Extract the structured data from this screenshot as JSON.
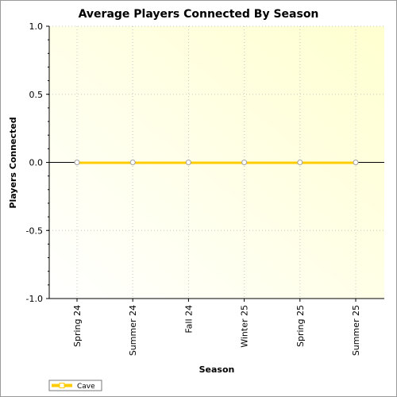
{
  "chart_data": {
    "type": "line",
    "title": "Average Players Connected By Season",
    "xlabel": "Season",
    "ylabel": "Players Connected",
    "categories": [
      "Spring 24",
      "Summer 24",
      "Fall 24",
      "Winter 25",
      "Spring 25",
      "Summer 25"
    ],
    "ylim": [
      -1.0,
      1.0
    ],
    "yticks": [
      "1.0",
      "0.5",
      "0.0",
      "-0.5",
      "-1.0"
    ],
    "ytick_values": [
      1.0,
      0.5,
      0.0,
      -0.5,
      -1.0
    ],
    "grid": true,
    "legend_position": "bottom-left",
    "series": [
      {
        "name": "Cave",
        "values": [
          0,
          0,
          0,
          0,
          0,
          0
        ],
        "color": "#ffcc00",
        "marker": "circle"
      }
    ],
    "colors": {
      "plot_background_start": "#ffffff",
      "plot_background_end": "#ffffd0",
      "grid": "#c8c8c8",
      "zero_line": "#000000"
    }
  }
}
